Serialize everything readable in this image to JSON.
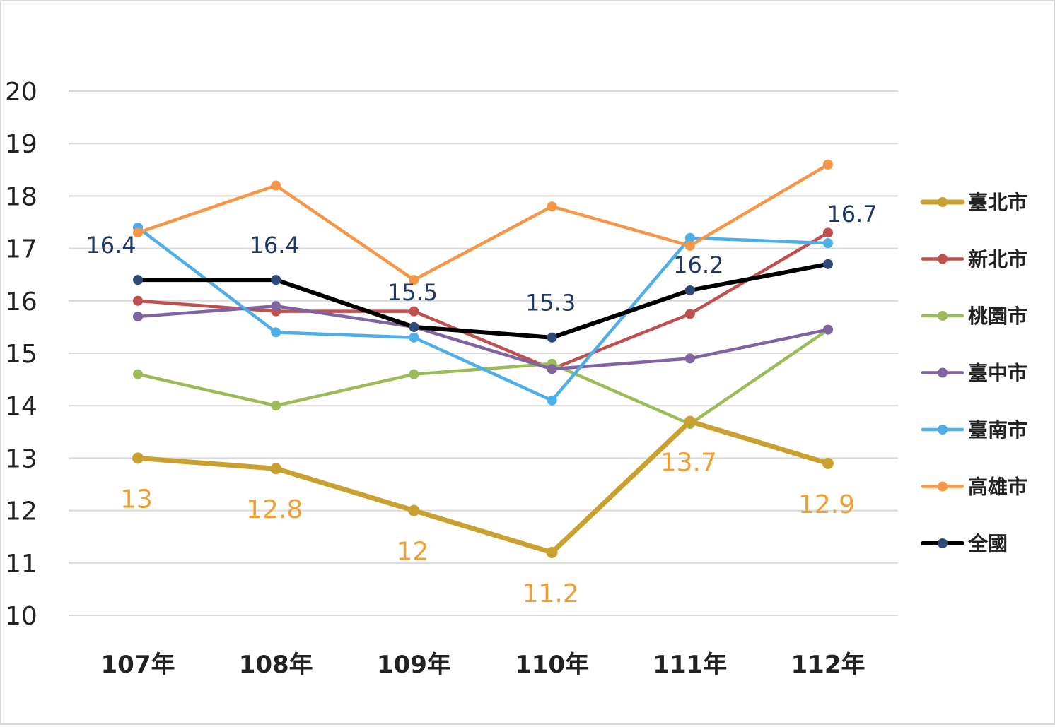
{
  "chart_data": {
    "type": "line",
    "categories": [
      "107年",
      "108年",
      "109年",
      "110年",
      "111年",
      "112年"
    ],
    "y_ticks": [
      "10",
      "11",
      "12",
      "13",
      "14",
      "15",
      "16",
      "17",
      "18",
      "19",
      "20"
    ],
    "ylim": [
      10,
      20
    ],
    "grid": true,
    "legend_position": "right",
    "series": [
      {
        "name": "臺北市",
        "color": "#c9a130",
        "values": [
          13,
          12.8,
          12,
          11.2,
          13.7,
          12.9
        ],
        "emphasis": true,
        "labels": [
          "13",
          "12.8",
          "12",
          "11.2",
          "13.7",
          "12.9"
        ]
      },
      {
        "name": "新北市",
        "color": "#c0504d",
        "values": [
          16.0,
          15.8,
          15.8,
          14.7,
          15.75,
          17.3
        ]
      },
      {
        "name": "桃園市",
        "color": "#9bbb59",
        "values": [
          14.6,
          14.0,
          14.6,
          14.8,
          13.65,
          15.45
        ]
      },
      {
        "name": "臺中市",
        "color": "#8064a2",
        "values": [
          15.7,
          15.9,
          15.5,
          14.7,
          14.9,
          15.45
        ]
      },
      {
        "name": "臺南市",
        "color": "#4daee8",
        "values": [
          17.4,
          15.4,
          15.3,
          14.1,
          17.2,
          17.1
        ]
      },
      {
        "name": "高雄市",
        "color": "#f79646",
        "values": [
          17.3,
          18.2,
          16.4,
          17.8,
          17.05,
          18.6
        ]
      },
      {
        "name": "全國",
        "color": "#000000",
        "marker_color": "#2f4a78",
        "values": [
          16.4,
          16.4,
          15.5,
          15.3,
          16.2,
          16.7
        ],
        "emphasis": true,
        "labels": [
          "16.4",
          "16.4",
          "15.5",
          "15.3",
          "16.2",
          "16.7"
        ]
      }
    ]
  }
}
